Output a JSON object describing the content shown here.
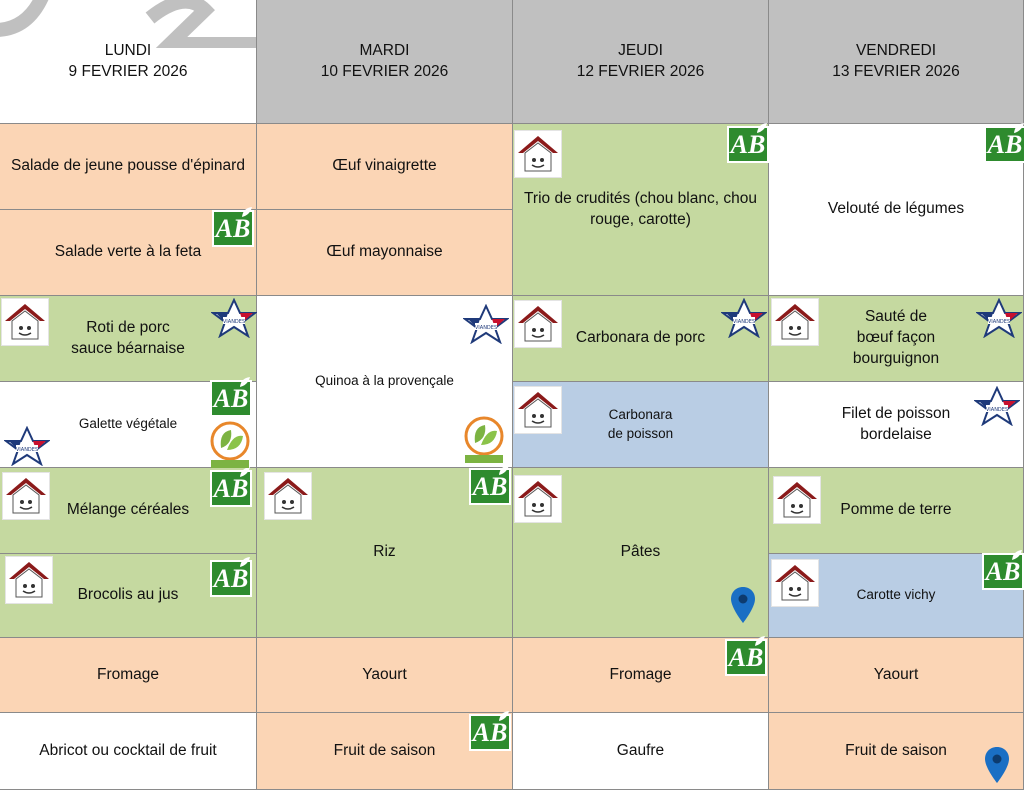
{
  "days": [
    {
      "name": "LUNDI",
      "date": "9 FEVRIER 2026"
    },
    {
      "name": "MARDI",
      "date": "10 FEVRIER 2026"
    },
    {
      "name": "JEUDI",
      "date": "12 FEVRIER 2026"
    },
    {
      "name": "VENDREDI",
      "date": "13 FEVRIER 2026"
    }
  ],
  "entrees": {
    "lundi": [
      "Salade de jeune pousse d'épinard",
      "Salade verte à la feta"
    ],
    "mardi": [
      "Œuf vinaigrette",
      "Œuf mayonnaise"
    ],
    "jeudi": "Trio de crudités (chou blanc, chou rouge, carotte)",
    "vendredi": "Velouté de légumes"
  },
  "plats": {
    "lundi": [
      "Roti de porc\nsauce béarnaise",
      "Galette végétale"
    ],
    "mardi": "Quinoa à la provençale",
    "jeudi": [
      "Carbonara de porc",
      "Carbonara\nde poisson"
    ],
    "vendredi": [
      "Sauté de\nbœuf façon\nbourguignon",
      "Filet de poisson\nbordelaise"
    ]
  },
  "accompagnements": {
    "lundi": [
      "Mélange céréales",
      "Brocolis au jus"
    ],
    "mardi": "Riz",
    "jeudi": "Pâtes",
    "vendredi": [
      "Pomme de terre",
      "Carotte vichy"
    ]
  },
  "produits_laitiers": [
    "Fromage",
    "Yaourt",
    "Fromage",
    "Yaourt"
  ],
  "desserts": [
    "Abricot ou cocktail de fruit",
    "Fruit de saison",
    "Gaufre",
    "Fruit de saison"
  ],
  "labels": {
    "bio": "AB",
    "vegetarien": "Végétarien",
    "viande_francaise": "VIANDES DE FRANCE"
  },
  "colors": {
    "header": "#c0c0c0",
    "peach": "#fbd5b5",
    "green": "#c5d9a0",
    "blue": "#b9cde4",
    "bio_green": "#2e8b2e",
    "pin": "#1a6fc4"
  }
}
